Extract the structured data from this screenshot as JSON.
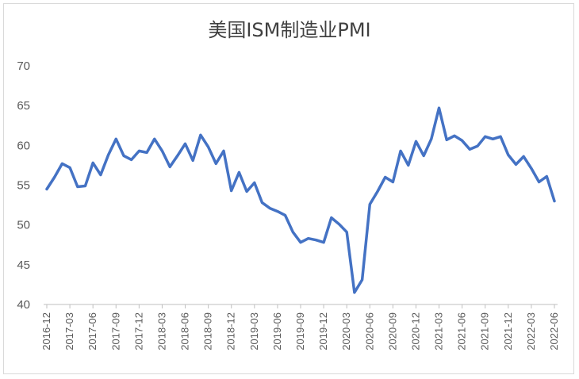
{
  "chart_data": {
    "type": "line",
    "title": "美国ISM制造业PMI",
    "xlabel": "",
    "ylabel": "",
    "ylim": [
      40,
      70
    ],
    "yticks": [
      40,
      45,
      50,
      55,
      60,
      65,
      70
    ],
    "grid": false,
    "legend": "none",
    "line_color": "#4472C4",
    "x": [
      "2016-12",
      "2017-01",
      "2017-02",
      "2017-03",
      "2017-04",
      "2017-05",
      "2017-06",
      "2017-07",
      "2017-08",
      "2017-09",
      "2017-10",
      "2017-11",
      "2017-12",
      "2018-01",
      "2018-02",
      "2018-03",
      "2018-04",
      "2018-05",
      "2018-06",
      "2018-07",
      "2018-08",
      "2018-09",
      "2018-10",
      "2018-11",
      "2018-12",
      "2019-01",
      "2019-02",
      "2019-03",
      "2019-04",
      "2019-05",
      "2019-06",
      "2019-07",
      "2019-08",
      "2019-09",
      "2019-10",
      "2019-11",
      "2019-12",
      "2020-01",
      "2020-02",
      "2020-03",
      "2020-04",
      "2020-05",
      "2020-06",
      "2020-07",
      "2020-08",
      "2020-09",
      "2020-10",
      "2020-11",
      "2020-12",
      "2021-01",
      "2021-02",
      "2021-03",
      "2021-04",
      "2021-05",
      "2021-06",
      "2021-07",
      "2021-08",
      "2021-09",
      "2021-10",
      "2021-11",
      "2021-12",
      "2022-01",
      "2022-02",
      "2022-03",
      "2022-04",
      "2022-05",
      "2022-06"
    ],
    "x_tick_labels": [
      "2016-12",
      "2017-03",
      "2017-06",
      "2017-09",
      "2017-12",
      "2018-03",
      "2018-06",
      "2018-09",
      "2018-12",
      "2019-03",
      "2019-06",
      "2019-09",
      "2019-12",
      "2020-03",
      "2020-06",
      "2020-09",
      "2020-12",
      "2021-03",
      "2021-06",
      "2021-09",
      "2021-12",
      "2022-03",
      "2022-06"
    ],
    "values": [
      54.5,
      56.0,
      57.7,
      57.2,
      54.8,
      54.9,
      57.8,
      56.3,
      58.8,
      60.8,
      58.7,
      58.2,
      59.3,
      59.1,
      60.8,
      59.3,
      57.3,
      58.7,
      60.2,
      58.1,
      61.3,
      59.8,
      57.7,
      59.3,
      54.3,
      56.6,
      54.2,
      55.3,
      52.8,
      52.1,
      51.7,
      51.2,
      49.1,
      47.8,
      48.3,
      48.1,
      47.8,
      50.9,
      50.1,
      49.1,
      41.5,
      43.1,
      52.6,
      54.2,
      56.0,
      55.4,
      59.3,
      57.5,
      60.5,
      58.7,
      60.8,
      64.7,
      60.7,
      61.2,
      60.6,
      59.5,
      59.9,
      61.1,
      60.8,
      61.1,
      58.8,
      57.6,
      58.6,
      57.1,
      55.4,
      56.1,
      53.0
    ]
  }
}
